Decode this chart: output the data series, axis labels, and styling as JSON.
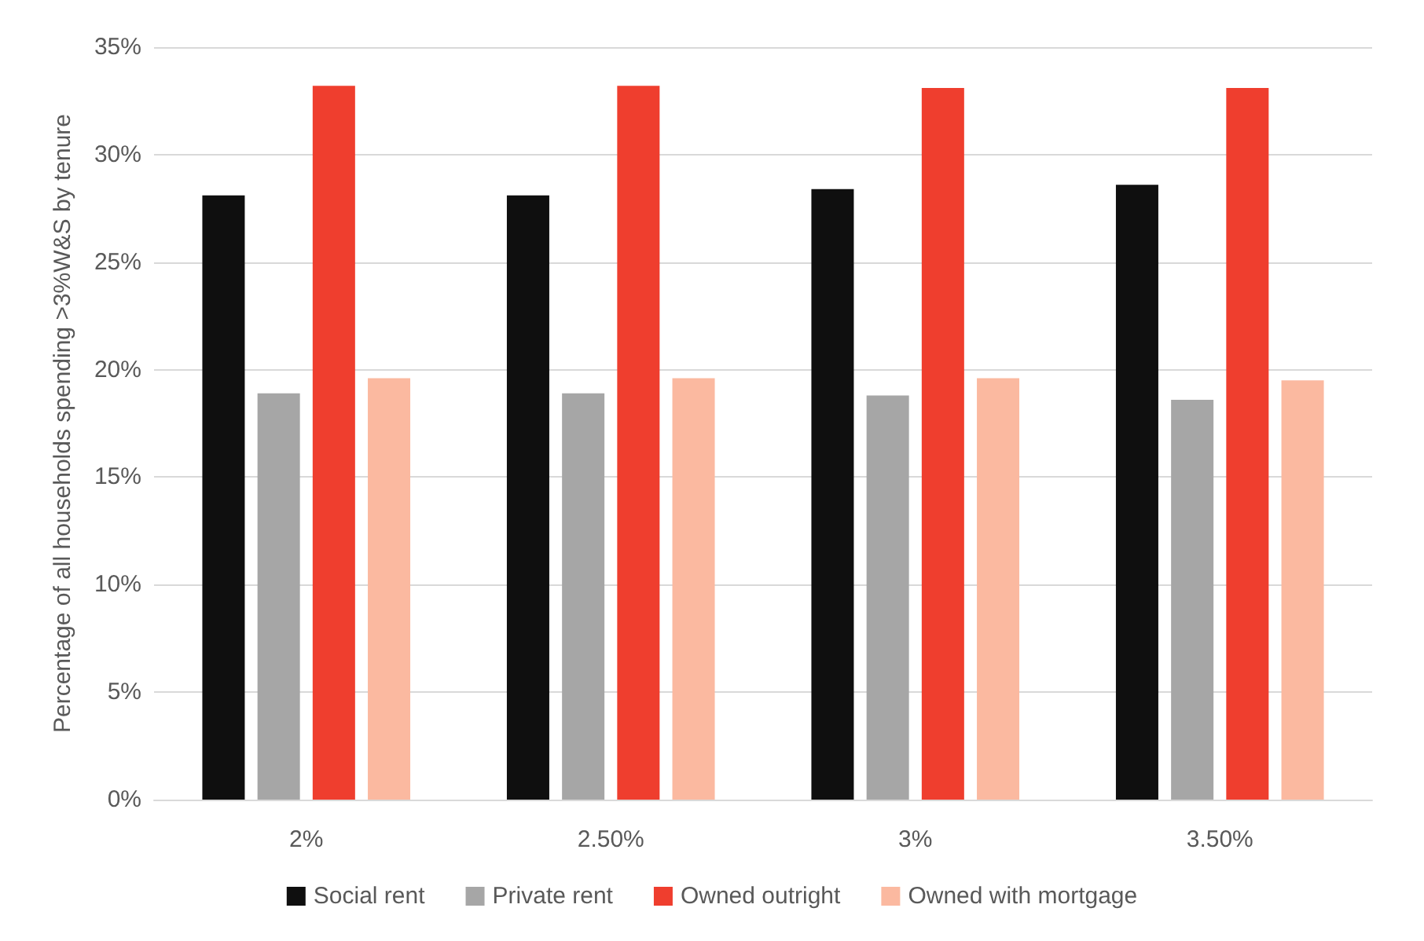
{
  "chart_data": {
    "type": "bar",
    "ylabel": "Percentage of all households spending >3%W&S by tenure",
    "categories": [
      "2%",
      "2.50%",
      "3%",
      "3.50%"
    ],
    "series": [
      {
        "name": "Social rent",
        "color": "#0f0f0f",
        "values": [
          28.1,
          28.1,
          28.4,
          28.6
        ]
      },
      {
        "name": "Private rent",
        "color": "#a6a6a6",
        "values": [
          18.9,
          18.9,
          18.8,
          18.6
        ]
      },
      {
        "name": "Owned outright",
        "color": "#ef3e2e",
        "values": [
          33.2,
          33.2,
          33.1,
          33.1
        ]
      },
      {
        "name": "Owned with mortgage",
        "color": "#fbb9a0",
        "values": [
          19.6,
          19.6,
          19.6,
          19.5
        ]
      }
    ],
    "ylim": [
      0,
      35
    ],
    "yticks": [
      {
        "value": 0,
        "label": "0%"
      },
      {
        "value": 5,
        "label": "5%"
      },
      {
        "value": 10,
        "label": "10%"
      },
      {
        "value": 15,
        "label": "15%"
      },
      {
        "value": 20,
        "label": "20%"
      },
      {
        "value": 25,
        "label": "25%"
      },
      {
        "value": 30,
        "label": "30%"
      },
      {
        "value": 35,
        "label": "35%"
      }
    ],
    "grid": "y",
    "legend": "bottom"
  }
}
